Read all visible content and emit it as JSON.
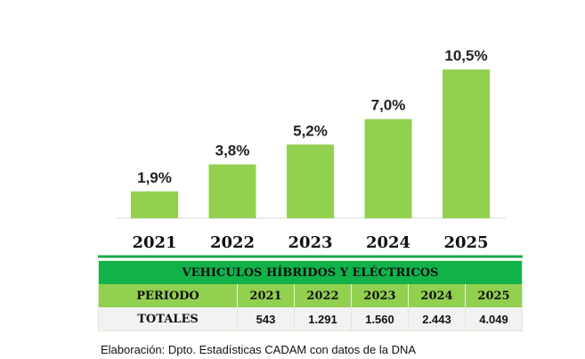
{
  "chart_data": {
    "type": "bar",
    "title": "",
    "xlabel": "",
    "ylabel": "",
    "categories": [
      "2021",
      "2022",
      "2023",
      "2024",
      "2025"
    ],
    "values": [
      1.9,
      3.8,
      5.2,
      7.0,
      10.5
    ],
    "value_labels": [
      "1,9%",
      "3,8%",
      "5,2%",
      "7,0%",
      "10,5%"
    ],
    "ylim": [
      0,
      10.5
    ],
    "grid": false,
    "legend": "none",
    "bar_color": "#92d050",
    "axis_line_color": "#1aa94c"
  },
  "table": {
    "title": "VEHICULOS HÍBRIDOS Y ELÉCTRICOS",
    "header": [
      "PERIODO",
      "2021",
      "2022",
      "2023",
      "2024",
      "2025"
    ],
    "totals": [
      "TOTALES",
      "543",
      "1.291",
      "1.560",
      "2.443",
      "4.049"
    ],
    "colors": {
      "title_bg": "#12b24a",
      "header_bg": "#92d050",
      "row_bg": "#f2f2f2"
    }
  },
  "source": "Elaboración:  Dpto. Estadísticas  CADAM  con datos de la DNA"
}
